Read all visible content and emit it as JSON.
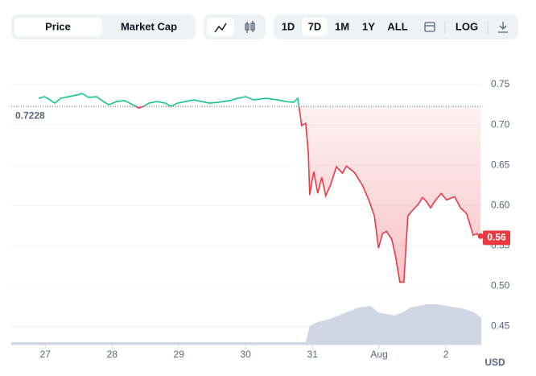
{
  "toolbar": {
    "tabs": [
      "Price",
      "Market Cap"
    ],
    "ranges": [
      "1D",
      "7D",
      "1M",
      "1Y",
      "ALL"
    ],
    "log": "LOG"
  },
  "chart_data": {
    "type": "line",
    "x": [
      -0.1,
      -0.01,
      0.07,
      0.14,
      0.23,
      0.35,
      0.47,
      0.55,
      0.65,
      0.77,
      0.87,
      0.95,
      1.07,
      1.19,
      1.31,
      1.4,
      1.47,
      1.55,
      1.67,
      1.8,
      1.88,
      1.98,
      2.1,
      2.22,
      2.34,
      2.46,
      2.58,
      2.76,
      2.88,
      3.0,
      3.12,
      3.3,
      3.48,
      3.6,
      3.72,
      3.78,
      3.81,
      3.84,
      3.9,
      3.94,
      3.96,
      4.02,
      4.08,
      4.14,
      4.2,
      4.27,
      4.36,
      4.45,
      4.51,
      4.63,
      4.75,
      4.84,
      4.93,
      4.99,
      5.05,
      5.11,
      5.19,
      5.25,
      5.31,
      5.37,
      5.43,
      5.49,
      5.59,
      5.65,
      5.71,
      5.77,
      5.83,
      5.93,
      6.01,
      6.13,
      6.22,
      6.31,
      6.41,
      6.46,
      6.52
    ],
    "series": [
      {
        "color_up": "#16c784",
        "color_down": "#ea3943",
        "values": [
          0.733,
          0.735,
          0.731,
          0.727,
          0.733,
          0.735,
          0.737,
          0.739,
          0.734,
          0.735,
          0.729,
          0.725,
          0.729,
          0.73,
          0.725,
          0.721,
          0.723,
          0.727,
          0.729,
          0.727,
          0.723,
          0.727,
          0.729,
          0.731,
          0.729,
          0.727,
          0.728,
          0.73,
          0.733,
          0.735,
          0.731,
          0.733,
          0.731,
          0.729,
          0.728,
          0.733,
          0.717,
          0.699,
          0.702,
          0.665,
          0.613,
          0.642,
          0.615,
          0.635,
          0.612,
          0.625,
          0.648,
          0.64,
          0.649,
          0.641,
          0.625,
          0.608,
          0.587,
          0.547,
          0.565,
          0.568,
          0.558,
          0.535,
          0.505,
          0.505,
          0.587,
          0.593,
          0.602,
          0.61,
          0.605,
          0.597,
          0.605,
          0.615,
          0.607,
          0.611,
          0.597,
          0.59,
          0.563,
          0.565,
          0.562
        ]
      }
    ],
    "baseline": 0.7228,
    "current_price": 0.56,
    "volume": {
      "color": "#cfd6e4",
      "x": [
        -0.51,
        3.9,
        3.96,
        4.08,
        4.27,
        4.51,
        4.69,
        4.87,
        4.99,
        5.23,
        5.35,
        5.47,
        5.59,
        5.71,
        5.89,
        6.01,
        6.25,
        6.43,
        6.53
      ],
      "values": [
        3,
        3,
        23,
        28,
        32,
        40,
        46,
        48,
        40,
        36,
        40,
        46,
        48,
        50,
        50,
        48,
        45,
        40,
        33
      ]
    },
    "xlim": [
      -0.51,
      6.53
    ],
    "xticks": [
      {
        "value": 0,
        "label": "27"
      },
      {
        "value": 1,
        "label": "28"
      },
      {
        "value": 2,
        "label": "29"
      },
      {
        "value": 3,
        "label": "30"
      },
      {
        "value": 4,
        "label": "31"
      },
      {
        "value": 5,
        "label": "Aug"
      },
      {
        "value": 6,
        "label": "2"
      }
    ],
    "ylim": [
      0.4275,
      0.785
    ],
    "yticks": [
      0.45,
      {
        "value": 0.5,
        "label": "0.50"
      },
      0.55,
      {
        "value": 0.6,
        "label": "0.60"
      },
      0.65,
      {
        "value": 0.7,
        "label": "0.70"
      },
      0.75
    ],
    "currency": "USD",
    "grid": true
  }
}
